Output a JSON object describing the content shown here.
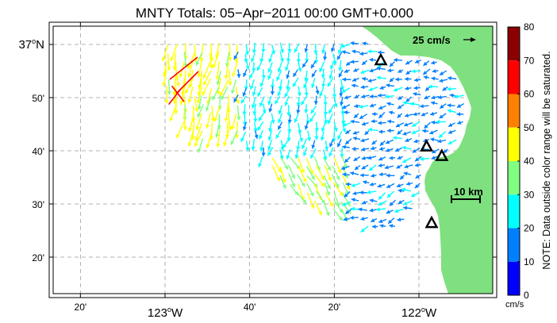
{
  "title": "MNTY Totals: 05−Apr−2011 00:00 GMT+0.000",
  "map": {
    "land_color": "#7fe07f",
    "ocean_color": "#ffffff",
    "lat_labels": [
      {
        "text": "37",
        "deg": true,
        "hemi": "N",
        "lat": 37.0,
        "major": true
      },
      {
        "text": "50'",
        "deg": false,
        "hemi": "",
        "lat": 36.8333,
        "major": false
      },
      {
        "text": "40'",
        "deg": false,
        "hemi": "",
        "lat": 36.6667,
        "major": false
      },
      {
        "text": "30'",
        "deg": false,
        "hemi": "",
        "lat": 36.5,
        "major": false
      },
      {
        "text": "20'",
        "deg": false,
        "hemi": "",
        "lat": 36.3333,
        "major": false
      }
    ],
    "lon_labels": [
      {
        "text": "20'",
        "deg": false,
        "hemi": "",
        "lon": -123.3333,
        "major": false
      },
      {
        "text": "123",
        "deg": true,
        "hemi": "W",
        "lon": -123.0,
        "major": true
      },
      {
        "text": "40'",
        "deg": false,
        "hemi": "",
        "lon": -122.6667,
        "major": false
      },
      {
        "text": "20'",
        "deg": false,
        "hemi": "",
        "lon": -122.3333,
        "major": false
      },
      {
        "text": "122",
        "deg": true,
        "hemi": "W",
        "lon": -122.0,
        "major": true
      }
    ],
    "scale_vector_label": "25 cm/s",
    "scale_bar_label": "10 km",
    "sites": [
      {
        "lon": -122.15,
        "lat": 36.95
      },
      {
        "lon": -121.97,
        "lat": 36.68
      },
      {
        "lon": -121.91,
        "lat": 36.65
      },
      {
        "lon": -121.95,
        "lat": 36.44
      }
    ]
  },
  "colorbar": {
    "ticks": [
      "80",
      "70",
      "60",
      "50",
      "40",
      "30",
      "20",
      "10",
      "0"
    ],
    "colors": [
      "#8b0000",
      "#ff0000",
      "#ff8000",
      "#ffff00",
      "#80ff80",
      "#00ffff",
      "#0080ff",
      "#0000ff"
    ],
    "unit": "cm/s",
    "note": "NOTE: Data outside color range will be saturated."
  }
}
